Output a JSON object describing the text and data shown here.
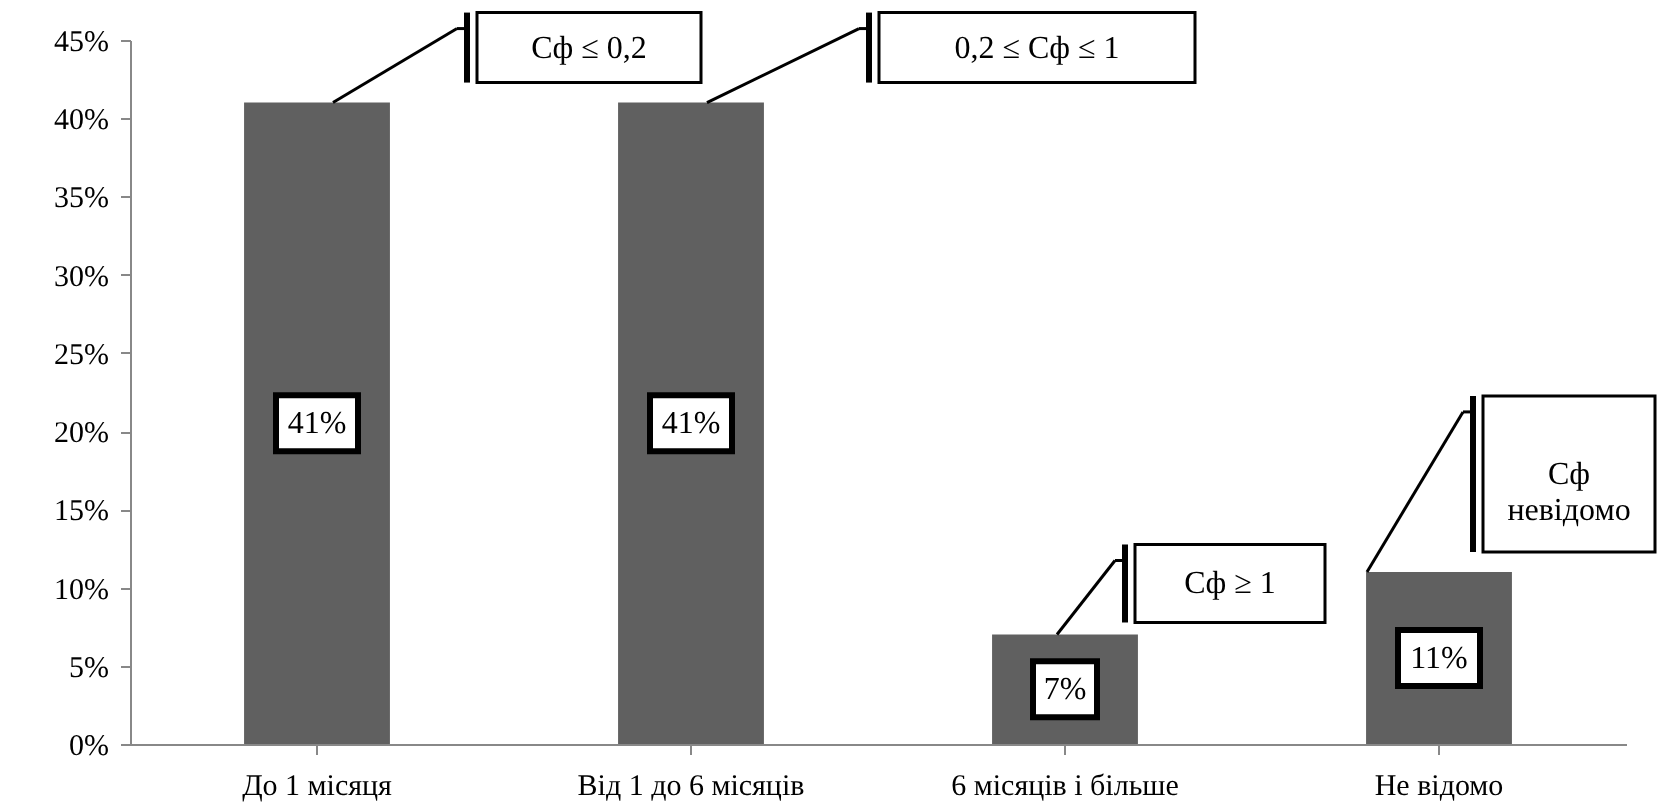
{
  "chart_data": {
    "type": "bar",
    "categories": [
      "До 1 місяця",
      "Від 1 до 6 місяців",
      "6 місяців і більше",
      "Не відомо"
    ],
    "values": [
      41,
      41,
      7,
      11
    ],
    "value_labels": [
      "41%",
      "41%",
      "7%",
      "11%"
    ],
    "color": "#606060",
    "ylim": [
      0,
      45
    ],
    "yticks": [
      {
        "value": 0,
        "label": "0%"
      },
      {
        "value": 5,
        "label": "5%"
      },
      {
        "value": 10,
        "label": "10%"
      },
      {
        "value": 15,
        "label": "15%"
      },
      {
        "value": 20,
        "label": "20%"
      },
      {
        "value": 25,
        "label": "25%"
      },
      {
        "value": 30,
        "label": "30%"
      },
      {
        "value": 35,
        "label": "35%"
      },
      {
        "value": 40,
        "label": "40%"
      },
      {
        "value": 45,
        "label": "45%"
      }
    ],
    "grid": false,
    "annotations": [
      "Сф ≤ 0,2",
      "0,2 ≤ Сф ≤ 1",
      "Сф ≥ 1",
      {
        "text": "Сф\nневідомо",
        "x": "Не відомо",
        "y": 11
      }
    ]
  }
}
